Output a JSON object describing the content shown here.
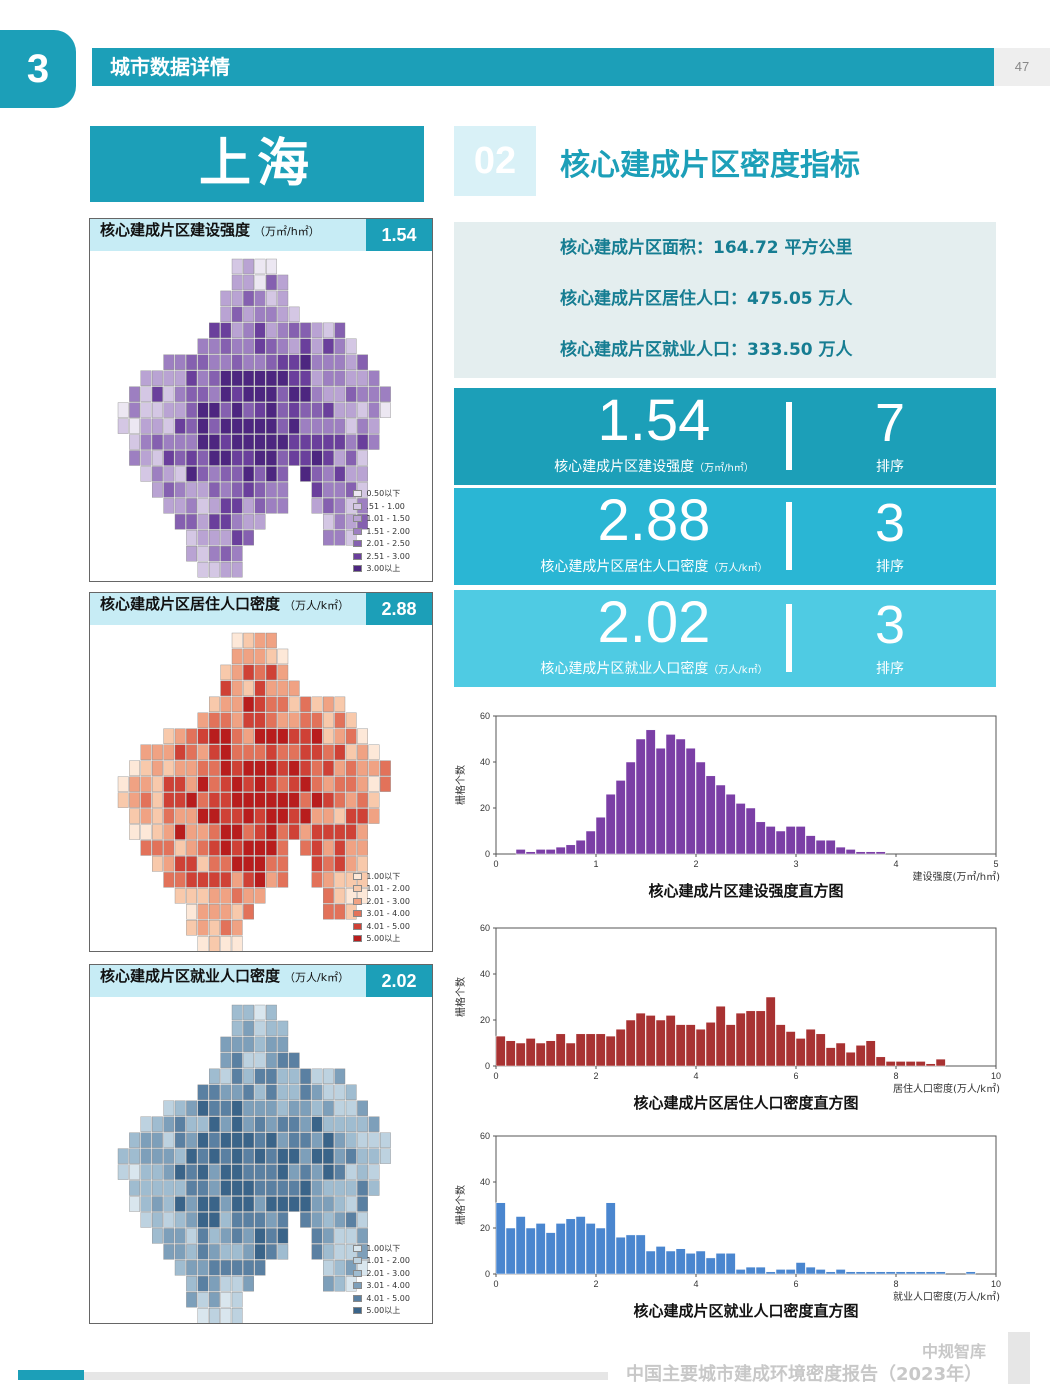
{
  "header": {
    "section_number": "3",
    "section_title": "城市数据详情",
    "page_number": "47"
  },
  "city": "上海",
  "maps": [
    {
      "label": "核心建成片区建设强度",
      "unit": "（万㎡/h㎡）",
      "value": "1.54",
      "palette": [
        "#ece7f2",
        "#d4c7e4",
        "#b9a3d3",
        "#9d7fc1",
        "#8560b0",
        "#6a3f9c",
        "#4d2680"
      ],
      "legend": [
        "0.50以下",
        ".51 - 1.00",
        "1.01 - 1.50",
        "1.51 - 2.00",
        "2.01 - 2.50",
        "2.51 - 3.00",
        "3.00以上"
      ]
    },
    {
      "label": "核心建成片区居住人口密度",
      "unit": "（万人/k㎡）",
      "value": "2.88",
      "palette": [
        "#fde8d8",
        "#f8c9ab",
        "#f0a283",
        "#e2725a",
        "#cf4136",
        "#b81d1d"
      ],
      "legend": [
        "1.00以下",
        "1.01 - 2.00",
        "2.01 - 3.00",
        "3.01 - 4.00",
        "4.01 - 5.00",
        "5.00以上"
      ]
    },
    {
      "label": "核心建成片区就业人口密度",
      "unit": "（万人/k㎡）",
      "value": "2.02",
      "palette": [
        "#d9e6ee",
        "#bdd2e0",
        "#9fbcd0",
        "#7d9fba",
        "#5a80a2",
        "#3a6489"
      ],
      "legend": [
        "1.00以下",
        "1.01 - 2.00",
        "2.01 - 3.00",
        "3.01 - 4.00",
        "4.01 - 5.00",
        "5.00以上"
      ]
    }
  ],
  "subsection": {
    "number": "02",
    "title": "核心建成片区密度指标"
  },
  "info": [
    "核心建成片区面积：164.72 平方公里",
    "核心建成片区居住人口：475.05 万人",
    "核心建成片区就业人口：333.50 万人"
  ],
  "metrics": [
    {
      "value": "1.54",
      "label": "核心建成片区建设强度",
      "unit": "（万㎡/h㎡）",
      "rank": "7",
      "rank_label": "排序",
      "color": "#1c9fb8"
    },
    {
      "value": "2.88",
      "label": "核心建成片区居住人口密度",
      "unit": "（万人/k㎡）",
      "rank": "3",
      "rank_label": "排序",
      "color": "#2ab6d4"
    },
    {
      "value": "2.02",
      "label": "核心建成片区就业人口密度",
      "unit": "（万人/k㎡）",
      "rank": "3",
      "rank_label": "排序",
      "color": "#4fcbe3"
    }
  ],
  "chart_data": [
    {
      "type": "bar",
      "title": "核心建成片区建设强度直方图",
      "xlabel": "建设强度(万㎡/h㎡)",
      "ylabel": "栅格个数",
      "xlim": [
        0,
        5
      ],
      "ylim": [
        0,
        60
      ],
      "xticks": [
        "0",
        "1",
        "2",
        "3",
        "4",
        "5"
      ],
      "yticks": [
        "0",
        "20",
        "40",
        "60"
      ],
      "color": "#7b3fa6",
      "bin_start": 0,
      "bin_width": 0.1,
      "values": [
        0,
        0,
        2,
        1,
        2,
        2,
        3,
        4,
        6,
        10,
        16,
        26,
        32,
        40,
        50,
        54,
        46,
        52,
        50,
        46,
        40,
        34,
        30,
        26,
        22,
        20,
        14,
        12,
        10,
        12,
        12,
        8,
        6,
        6,
        3,
        2,
        1,
        1,
        1,
        0,
        0,
        0,
        0,
        0,
        0,
        0,
        0,
        0,
        0,
        0
      ]
    },
    {
      "type": "bar",
      "title": "核心建成片区居住人口密度直方图",
      "xlabel": "居住人口密度(万人/k㎡)",
      "ylabel": "栅格个数",
      "xlim": [
        0,
        10
      ],
      "ylim": [
        0,
        60
      ],
      "xticks": [
        "0",
        "2",
        "4",
        "6",
        "8",
        "10"
      ],
      "yticks": [
        "0",
        "20",
        "40",
        "60"
      ],
      "color": "#a83232",
      "bin_start": 0,
      "bin_width": 0.2,
      "values": [
        13,
        11,
        10,
        12,
        10,
        11,
        14,
        10,
        14,
        14,
        14,
        13,
        16,
        20,
        23,
        22,
        20,
        22,
        18,
        18,
        16,
        19,
        26,
        18,
        23,
        24,
        24,
        30,
        18,
        15,
        12,
        16,
        14,
        8,
        10,
        6,
        9,
        11,
        4,
        2,
        2,
        2,
        2,
        1,
        3,
        0,
        0,
        0,
        0,
        0
      ]
    },
    {
      "type": "bar",
      "title": "核心建成片区就业人口密度直方图",
      "xlabel": "就业人口密度(万人/k㎡)",
      "ylabel": "栅格个数",
      "xlim": [
        0,
        10
      ],
      "ylim": [
        0,
        60
      ],
      "xticks": [
        "0",
        "2",
        "4",
        "6",
        "8",
        "10"
      ],
      "yticks": [
        "0",
        "20",
        "40",
        "60"
      ],
      "color": "#4a86cf",
      "bin_start": 0,
      "bin_width": 0.2,
      "values": [
        31,
        20,
        25,
        20,
        22,
        18,
        22,
        24,
        25,
        22,
        20,
        31,
        16,
        17,
        17,
        10,
        12,
        10,
        11,
        9,
        10,
        7,
        9,
        9,
        2,
        3,
        3,
        1,
        2,
        2,
        5,
        3,
        2,
        1,
        2,
        1,
        1,
        1,
        1,
        1,
        1,
        1,
        1,
        1,
        1,
        0,
        0,
        1,
        0,
        0
      ]
    }
  ],
  "footer": {
    "brand": "中规智库",
    "title": "中国主要城市建成环境密度报告（2023年）"
  }
}
